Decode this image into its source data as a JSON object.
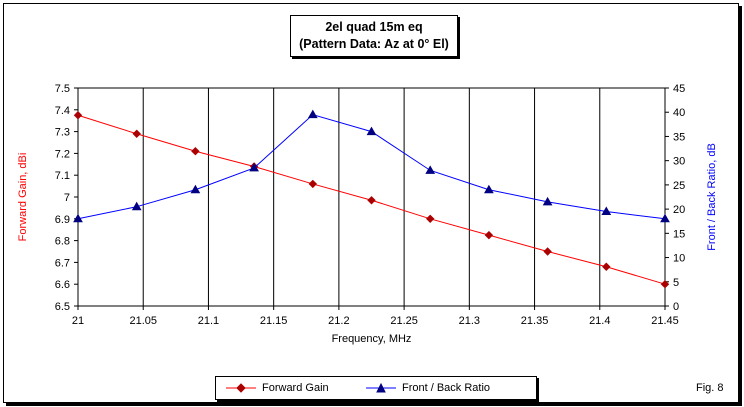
{
  "figure_label": "Fig. 8",
  "chart_data": {
    "type": "line",
    "title": "2el quad 15m eq",
    "subtitle": "(Pattern Data: Az at 0° El)",
    "xlabel": "Frequency, MHz",
    "ylabel_left": "Forward Gain, dBi",
    "ylabel_right": "Front / Back Ratio, dB",
    "xlim": [
      21,
      21.45
    ],
    "ylim_left": [
      6.5,
      7.5
    ],
    "ylim_right": [
      0,
      45
    ],
    "x_tick_labels": [
      "21",
      "21.05",
      "21.1",
      "21.15",
      "21.2",
      "21.25",
      "21.3",
      "21.35",
      "21.4",
      "21.45"
    ],
    "y_left_tick_labels": [
      "6.5",
      "6.6",
      "6.7",
      "6.8",
      "6.9",
      "7",
      "7.1",
      "7.2",
      "7.3",
      "7.4",
      "7.5"
    ],
    "y_right_tick_labels": [
      "0",
      "5",
      "10",
      "15",
      "20",
      "25",
      "30",
      "35",
      "40",
      "45"
    ],
    "grid": "vertical",
    "legend_position": "bottom",
    "x": [
      21.0,
      21.045,
      21.09,
      21.135,
      21.18,
      21.225,
      21.27,
      21.315,
      21.36,
      21.405,
      21.45
    ],
    "series": [
      {
        "name": "Forward Gain",
        "axis": "left",
        "color": "#ff0000",
        "marker": "diamond",
        "values": [
          7.375,
          7.29,
          7.21,
          7.14,
          7.06,
          6.985,
          6.9,
          6.825,
          6.75,
          6.68,
          6.6
        ]
      },
      {
        "name": "Front / Back Ratio",
        "axis": "right",
        "color": "#0000ff",
        "marker": "triangle",
        "values": [
          18.0,
          20.5,
          24.0,
          28.5,
          39.5,
          36.0,
          28.0,
          24.0,
          21.5,
          19.5,
          18.0
        ]
      }
    ]
  }
}
